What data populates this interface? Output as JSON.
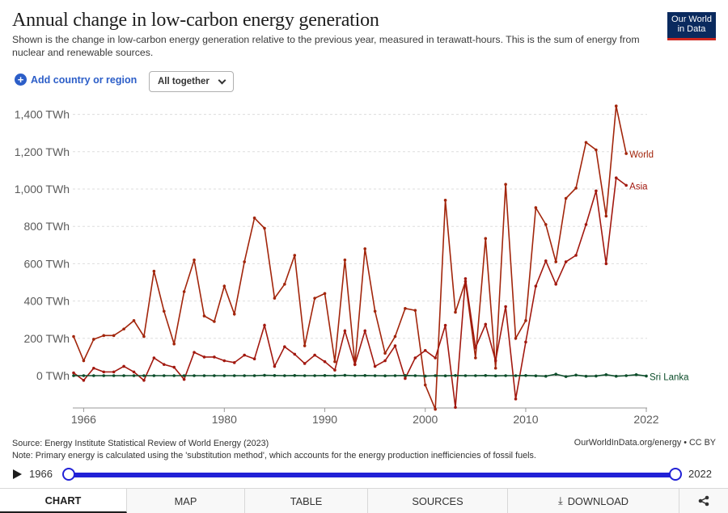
{
  "header": {
    "title": "Annual change in low-carbon energy generation",
    "subtitle": "Shown is the change in low-carbon energy generation relative to the previous year, measured in terawatt-hours. This is the sum of energy from nuclear and renewable sources.",
    "logo_line1": "Our World",
    "logo_line2": "in Data"
  },
  "controls": {
    "add_label": "Add country or region",
    "dropdown_value": "All together"
  },
  "colors": {
    "world": "#a2250b",
    "asia": "#a2180f",
    "sri_lanka": "#0c4d2a",
    "accent": "#2121d6",
    "link": "#2c5ec8"
  },
  "chart_data": {
    "type": "line",
    "xlim": [
      1966,
      2022
    ],
    "ylim": [
      -200,
      1500
    ],
    "x_ticks": [
      1966,
      1980,
      1990,
      2000,
      2010,
      2022
    ],
    "y_ticks": [
      0,
      200,
      400,
      600,
      800,
      1000,
      1200,
      1400
    ],
    "y_tick_labels": [
      "0 TWh",
      "200 TWh",
      "400 TWh",
      "600 TWh",
      "800 TWh",
      "1,000 TWh",
      "1,200 TWh",
      "1,400 TWh"
    ],
    "grid": "horizontal-dotted",
    "series": [
      {
        "name": "World",
        "color": "#a2250b",
        "x": [
          1965,
          1966,
          1967,
          1968,
          1969,
          1970,
          1971,
          1972,
          1973,
          1974,
          1975,
          1976,
          1977,
          1978,
          1979,
          1980,
          1981,
          1982,
          1983,
          1984,
          1985,
          1986,
          1987,
          1988,
          1989,
          1990,
          1991,
          1992,
          1993,
          1994,
          1995,
          1996,
          1997,
          1998,
          1999,
          2000,
          2001,
          2002,
          2003,
          2004,
          2005,
          2006,
          2007,
          2008,
          2009,
          2010,
          2011,
          2012,
          2013,
          2014,
          2015,
          2016,
          2017,
          2018,
          2019,
          2020,
          2021,
          2022
        ],
        "values": [
          210,
          80,
          195,
          215,
          215,
          250,
          295,
          210,
          560,
          345,
          170,
          450,
          620,
          320,
          290,
          480,
          330,
          610,
          845,
          790,
          415,
          490,
          645,
          160,
          415,
          440,
          75,
          620,
          60,
          680,
          345,
          120,
          210,
          360,
          350,
          -50,
          -180,
          940,
          340,
          505,
          95,
          735,
          40,
          1025,
          200,
          295,
          900,
          810,
          610,
          950,
          1005,
          1250,
          1210,
          855,
          1445,
          1190,
          null,
          null
        ]
      },
      {
        "name": "Asia",
        "color": "#a2180f",
        "x": [
          1965,
          1966,
          1967,
          1968,
          1969,
          1970,
          1971,
          1972,
          1973,
          1974,
          1975,
          1976,
          1977,
          1978,
          1979,
          1980,
          1981,
          1982,
          1983,
          1984,
          1985,
          1986,
          1987,
          1988,
          1989,
          1990,
          1991,
          1992,
          1993,
          1994,
          1995,
          1996,
          1997,
          1998,
          1999,
          2000,
          2001,
          2002,
          2003,
          2004,
          2005,
          2006,
          2007,
          2008,
          2009,
          2010,
          2011,
          2012,
          2013,
          2014,
          2015,
          2016,
          2017,
          2018,
          2019,
          2020,
          2021,
          2022
        ],
        "values": [
          15,
          -25,
          40,
          20,
          20,
          50,
          20,
          -25,
          95,
          60,
          45,
          -20,
          125,
          100,
          100,
          80,
          70,
          110,
          90,
          270,
          50,
          155,
          115,
          65,
          110,
          75,
          30,
          240,
          60,
          240,
          50,
          80,
          160,
          -15,
          95,
          135,
          95,
          270,
          -170,
          520,
          150,
          275,
          80,
          370,
          -125,
          180,
          480,
          615,
          490,
          610,
          645,
          810,
          990,
          600,
          1060,
          1020,
          null,
          null
        ]
      },
      {
        "name": "Sri Lanka",
        "color": "#0c4d2a",
        "x": [
          1965,
          1966,
          1967,
          1968,
          1969,
          1970,
          1971,
          1972,
          1973,
          1974,
          1975,
          1976,
          1977,
          1978,
          1979,
          1980,
          1981,
          1982,
          1983,
          1984,
          1985,
          1986,
          1987,
          1988,
          1989,
          1990,
          1991,
          1992,
          1993,
          1994,
          1995,
          1996,
          1997,
          1998,
          1999,
          2000,
          2001,
          2002,
          2003,
          2004,
          2005,
          2006,
          2007,
          2008,
          2009,
          2010,
          2011,
          2012,
          2013,
          2014,
          2015,
          2016,
          2017,
          2018,
          2019,
          2020,
          2021,
          2022
        ],
        "values": [
          0,
          0,
          0,
          0,
          0,
          0,
          0,
          0,
          0,
          0,
          0,
          0,
          0,
          0,
          0,
          0,
          0,
          0,
          0,
          2,
          1,
          0,
          1,
          0,
          0,
          1,
          0,
          2,
          0,
          1,
          0,
          -1,
          0,
          1,
          0,
          -2,
          0,
          -1,
          1,
          0,
          0,
          1,
          -1,
          0,
          0,
          1,
          -1,
          -3,
          8,
          -5,
          3,
          -3,
          -2,
          5,
          -3,
          0,
          5,
          -2
        ]
      }
    ]
  },
  "footer": {
    "source": "Source: Energy Institute Statistical Review of World Energy (2023)",
    "note": "Note: Primary energy is calculated using the 'substitution method', which accounts for the energy production inefficiencies of fossil fuels.",
    "attribution": "OurWorldInData.org/energy • CC BY"
  },
  "timeline": {
    "start": "1966",
    "end": "2022"
  },
  "tabs": [
    "CHART",
    "MAP",
    "TABLE",
    "SOURCES",
    "DOWNLOAD"
  ]
}
